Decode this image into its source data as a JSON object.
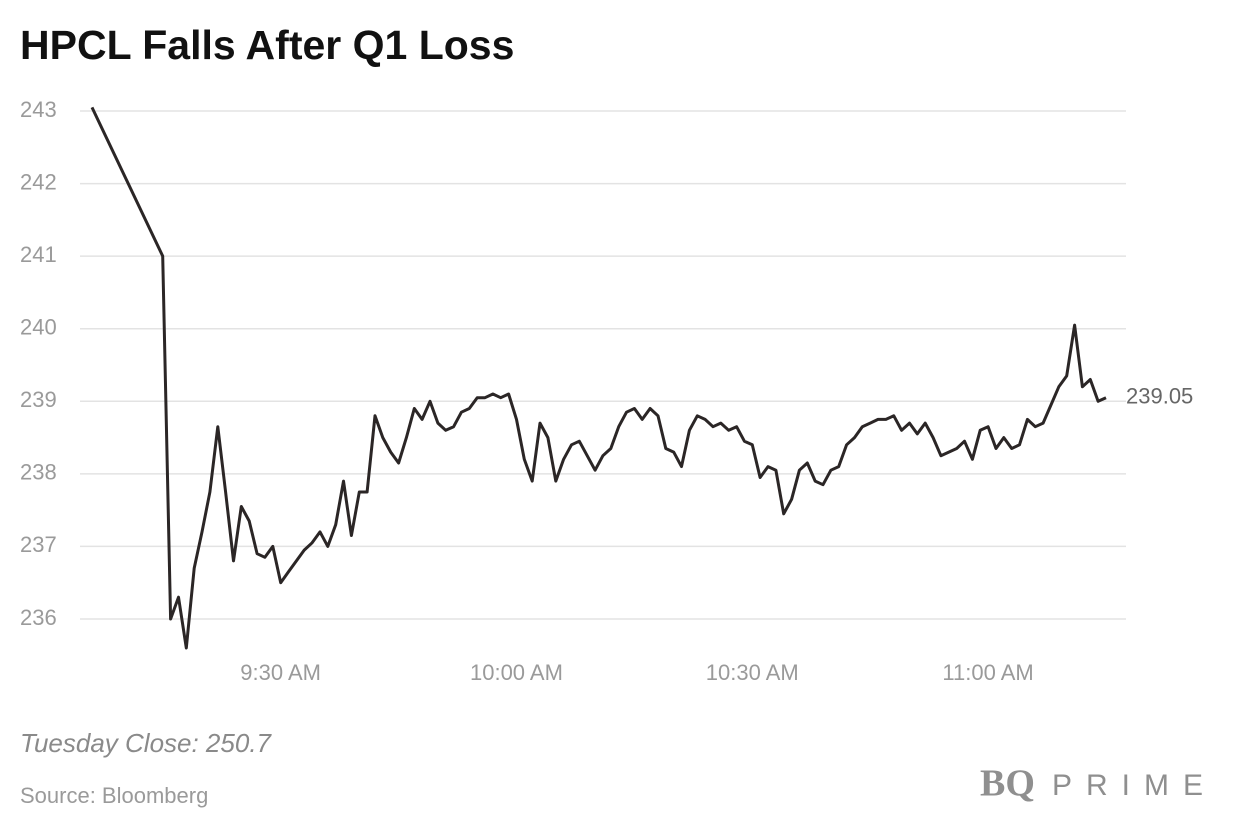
{
  "chart_data": {
    "type": "line",
    "title": "HPCL Falls After Q1 Loss",
    "x": [
      "9:06 AM",
      "9:15 AM",
      "9:16 AM",
      "9:17 AM",
      "9:18 AM",
      "9:19 AM",
      "9:20 AM",
      "9:21 AM",
      "9:22 AM",
      "9:23 AM",
      "9:24 AM",
      "9:25 AM",
      "9:26 AM",
      "9:27 AM",
      "9:28 AM",
      "9:29 AM",
      "9:30 AM",
      "9:31 AM",
      "9:32 AM",
      "9:33 AM",
      "9:34 AM",
      "9:35 AM",
      "9:36 AM",
      "9:37 AM",
      "9:38 AM",
      "9:39 AM",
      "9:40 AM",
      "9:41 AM",
      "9:42 AM",
      "9:43 AM",
      "9:44 AM",
      "9:45 AM",
      "9:46 AM",
      "9:47 AM",
      "9:48 AM",
      "9:49 AM",
      "9:50 AM",
      "9:51 AM",
      "9:52 AM",
      "9:53 AM",
      "9:54 AM",
      "9:55 AM",
      "9:56 AM",
      "9:57 AM",
      "9:58 AM",
      "9:59 AM",
      "10:00 AM",
      "10:01 AM",
      "10:02 AM",
      "10:03 AM",
      "10:04 AM",
      "10:05 AM",
      "10:06 AM",
      "10:07 AM",
      "10:08 AM",
      "10:09 AM",
      "10:10 AM",
      "10:11 AM",
      "10:12 AM",
      "10:13 AM",
      "10:14 AM",
      "10:15 AM",
      "10:16 AM",
      "10:17 AM",
      "10:18 AM",
      "10:19 AM",
      "10:20 AM",
      "10:21 AM",
      "10:22 AM",
      "10:23 AM",
      "10:24 AM",
      "10:25 AM",
      "10:26 AM",
      "10:27 AM",
      "10:28 AM",
      "10:29 AM",
      "10:30 AM",
      "10:31 AM",
      "10:32 AM",
      "10:33 AM",
      "10:34 AM",
      "10:35 AM",
      "10:36 AM",
      "10:37 AM",
      "10:38 AM",
      "10:39 AM",
      "10:40 AM",
      "10:41 AM",
      "10:42 AM",
      "10:43 AM",
      "10:44 AM",
      "10:45 AM",
      "10:46 AM",
      "10:47 AM",
      "10:48 AM",
      "10:49 AM",
      "10:50 AM",
      "10:51 AM",
      "10:52 AM",
      "10:53 AM",
      "10:54 AM",
      "10:55 AM",
      "10:56 AM",
      "10:57 AM",
      "10:58 AM",
      "10:59 AM",
      "11:00 AM",
      "11:01 AM",
      "11:02 AM",
      "11:03 AM",
      "11:04 AM",
      "11:05 AM",
      "11:06 AM",
      "11:07 AM",
      "11:08 AM",
      "11:09 AM",
      "11:10 AM",
      "11:11 AM",
      "11:12 AM",
      "11:13 AM",
      "11:14 AM",
      "11:15 AM"
    ],
    "values": [
      243.05,
      241.0,
      236.0,
      236.3,
      235.6,
      236.7,
      237.2,
      237.75,
      238.65,
      237.75,
      236.8,
      237.55,
      237.35,
      236.9,
      236.85,
      237.0,
      236.5,
      236.65,
      236.8,
      236.95,
      237.05,
      237.2,
      237.0,
      237.3,
      237.9,
      237.15,
      237.75,
      237.75,
      238.8,
      238.5,
      238.3,
      238.15,
      238.5,
      238.9,
      238.75,
      239.0,
      238.7,
      238.6,
      238.65,
      238.85,
      238.9,
      239.05,
      239.05,
      239.1,
      239.05,
      239.1,
      238.75,
      238.2,
      237.9,
      238.7,
      238.5,
      237.9,
      238.2,
      238.4,
      238.45,
      238.25,
      238.05,
      238.25,
      238.35,
      238.65,
      238.85,
      238.9,
      238.75,
      238.9,
      238.8,
      238.35,
      238.3,
      238.1,
      238.6,
      238.8,
      238.75,
      238.65,
      238.7,
      238.6,
      238.65,
      238.45,
      238.4,
      237.95,
      238.1,
      238.05,
      237.45,
      237.65,
      238.05,
      238.15,
      237.9,
      237.85,
      238.05,
      238.1,
      238.4,
      238.5,
      238.65,
      238.7,
      238.75,
      238.75,
      238.8,
      238.6,
      238.7,
      238.55,
      238.7,
      238.5,
      238.25,
      238.3,
      238.35,
      238.45,
      238.2,
      238.6,
      238.65,
      238.35,
      238.5,
      238.35,
      238.4,
      238.75,
      238.65,
      238.7,
      238.95,
      239.2,
      239.35,
      240.05,
      239.2,
      239.3,
      239.0,
      239.05
    ],
    "color": "#2b2626",
    "xlim": [
      "9:06 AM",
      "11:15 AM"
    ],
    "xticks": [
      "9:30 AM",
      "10:00 AM",
      "10:30 AM",
      "11:00 AM"
    ],
    "ylim": [
      236,
      243
    ],
    "yticks": [
      236,
      237,
      238,
      239,
      240,
      241,
      242,
      243
    ],
    "grid": true,
    "annotation": "Tuesday Close: 250.7",
    "source": "Source: Bloomberg",
    "logo": {
      "mark": "BQ",
      "text": "PRIME"
    }
  }
}
